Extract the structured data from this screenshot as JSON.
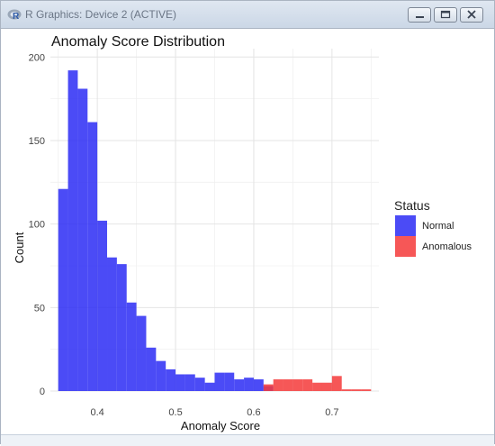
{
  "window": {
    "title": "R Graphics: Device 2 (ACTIVE)",
    "icon": "r-logo-icon",
    "controls": [
      "minimize-icon",
      "maximize-icon",
      "close-icon"
    ]
  },
  "chart_data": {
    "type": "bar",
    "subtype": "histogram",
    "title": "Anomaly Score Distribution",
    "xlabel": "Anomaly Score",
    "ylabel": "Count",
    "xlim": [
      0.34,
      0.76
    ],
    "ylim": [
      0,
      205
    ],
    "x_ticks": [
      "0.4",
      "0.5",
      "0.6",
      "0.7"
    ],
    "y_ticks": [
      "0",
      "50",
      "100",
      "150",
      "200"
    ],
    "x_tick_values": [
      0.4,
      0.5,
      0.6,
      0.7
    ],
    "y_tick_values": [
      0,
      50,
      100,
      150,
      200
    ],
    "grid": true,
    "legend_position": "right",
    "legend_title": "Status",
    "bin_width": 0.0125,
    "series": [
      {
        "name": "Normal",
        "color": "#2b2bf5",
        "bins": [
          {
            "x0": 0.35,
            "count": 121
          },
          {
            "x0": 0.3625,
            "count": 192
          },
          {
            "x0": 0.375,
            "count": 181
          },
          {
            "x0": 0.3875,
            "count": 161
          },
          {
            "x0": 0.4,
            "count": 102
          },
          {
            "x0": 0.4125,
            "count": 80
          },
          {
            "x0": 0.425,
            "count": 76
          },
          {
            "x0": 0.4375,
            "count": 53
          },
          {
            "x0": 0.45,
            "count": 45
          },
          {
            "x0": 0.4625,
            "count": 26
          },
          {
            "x0": 0.475,
            "count": 18
          },
          {
            "x0": 0.4875,
            "count": 13
          },
          {
            "x0": 0.5,
            "count": 10
          },
          {
            "x0": 0.5125,
            "count": 10
          },
          {
            "x0": 0.525,
            "count": 8
          },
          {
            "x0": 0.5375,
            "count": 5
          },
          {
            "x0": 0.55,
            "count": 11
          },
          {
            "x0": 0.5625,
            "count": 11
          },
          {
            "x0": 0.575,
            "count": 7
          },
          {
            "x0": 0.5875,
            "count": 8
          },
          {
            "x0": 0.6,
            "count": 7
          },
          {
            "x0": 0.6125,
            "count": 3
          }
        ]
      },
      {
        "name": "Anomalous",
        "color": "#f53a3a",
        "bins": [
          {
            "x0": 0.6125,
            "count": 4
          },
          {
            "x0": 0.625,
            "count": 7
          },
          {
            "x0": 0.6375,
            "count": 7
          },
          {
            "x0": 0.65,
            "count": 7
          },
          {
            "x0": 0.6625,
            "count": 7
          },
          {
            "x0": 0.675,
            "count": 5
          },
          {
            "x0": 0.6875,
            "count": 5
          },
          {
            "x0": 0.7,
            "count": 9
          },
          {
            "x0": 0.7125,
            "count": 1
          },
          {
            "x0": 0.725,
            "count": 1
          },
          {
            "x0": 0.7375,
            "count": 1
          }
        ]
      }
    ]
  }
}
